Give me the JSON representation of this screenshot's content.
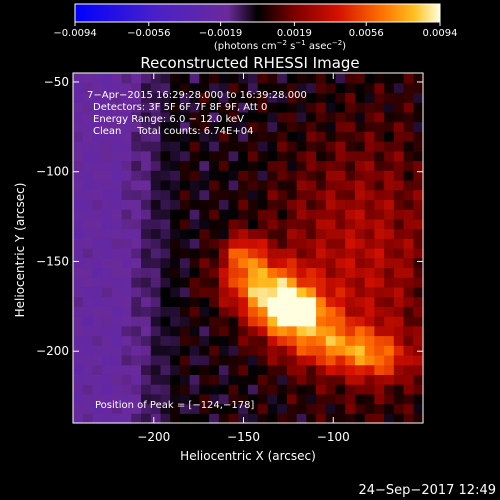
{
  "chart_data": {
    "type": "heatmap",
    "title": "Reconstructed RHESSI Image",
    "xlabel": "Heliocentric X (arcsec)",
    "ylabel": "Heliocentric Y (arcsec)",
    "xlim": [
      -245,
      -50
    ],
    "ylim": [
      -240,
      -45
    ],
    "x_ticks": [
      -200,
      -150,
      -100
    ],
    "x_tick_labels": [
      "−200",
      "−150",
      "−100"
    ],
    "y_ticks": [
      -50,
      -100,
      -150,
      -200
    ],
    "y_tick_labels": [
      "−50",
      "−100",
      "−150",
      "−200"
    ],
    "colorbar": {
      "range": [
        -0.0094,
        0.0094
      ],
      "ticks": [
        -0.0094,
        -0.0056,
        -0.0019,
        0.0019,
        0.0056,
        0.0094
      ],
      "tick_labels": [
        "−0.0094",
        "−0.0056",
        "−0.0019",
        "0.0019",
        "0.0056",
        "0.0094"
      ],
      "units_prefix": "(photons cm",
      "units_exp1": "−2",
      "units_mid": " s",
      "units_exp2": "−1",
      "units_mid2": " asec",
      "units_exp3": "−2",
      "units_suffix": ")"
    },
    "annotations": [
      "7−Apr−2015 16:29:28.000 to 16:39:28.000",
      "Detectors: 3F 5F 6F 7F 8F 9F, Att 0",
      "Energy Range: 6.0 − 12.0 keV",
      "Clean     Total counts: 6.74E+04"
    ],
    "peak_label": "Position of Peak = [−124,−178]",
    "peak": [
      -124,
      -178
    ],
    "peak_value": 0.0094,
    "sources": [
      {
        "x": -124,
        "y": -178,
        "sx": 14,
        "sy": 9,
        "amp": 0.0094
      },
      {
        "x": -140,
        "y": -162,
        "sx": 16,
        "sy": 10,
        "amp": 0.0062
      },
      {
        "x": -100,
        "y": -196,
        "sx": 20,
        "sy": 9,
        "amp": 0.0048
      },
      {
        "x": -75,
        "y": -205,
        "sx": 14,
        "sy": 8,
        "amp": 0.0034
      },
      {
        "x": -150,
        "y": -145,
        "sx": 8,
        "sy": 8,
        "amp": 0.0045
      },
      {
        "x": -100,
        "y": -150,
        "sx": 30,
        "sy": 45,
        "amp": 0.0022
      },
      {
        "x": -70,
        "y": -150,
        "sx": 25,
        "sy": 60,
        "amp": 0.0015
      }
    ],
    "footer_date": "24−Sep−2017 12:49",
    "grid": false
  }
}
